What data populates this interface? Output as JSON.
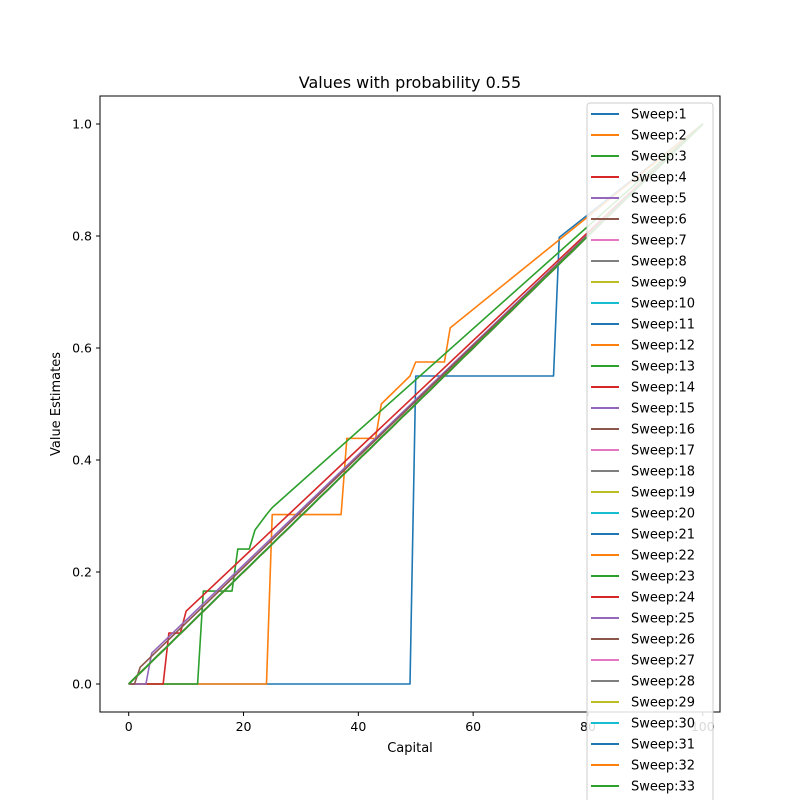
{
  "chart_data": {
    "type": "line",
    "title": "Values with probability 0.55",
    "xlabel": "Capital",
    "ylabel": "Value Estimates",
    "xlim": [
      -5,
      103
    ],
    "ylim": [
      -0.05,
      1.05
    ],
    "xticks": [
      0,
      20,
      40,
      60,
      80,
      100
    ],
    "yticks": [
      0.0,
      0.2,
      0.4,
      0.6,
      0.8,
      1.0
    ],
    "grid": false,
    "legend_position": "top-right",
    "n_series": 33,
    "series_colors": [
      "#1f77b4",
      "#ff7f0e",
      "#2ca02c",
      "#d62728",
      "#9467bd",
      "#8c564b",
      "#e377c2",
      "#7f7f7f",
      "#bcbd22",
      "#17becf"
    ],
    "series": [
      {
        "name": "Sweep:1",
        "x": [
          0,
          49,
          50,
          74,
          75,
          100
        ],
        "y": [
          0,
          0,
          0.55,
          0.55,
          0.7975,
          1
        ]
      },
      {
        "name": "Sweep:2",
        "x": [
          0,
          24,
          25,
          37,
          38,
          43,
          44,
          49,
          50,
          55,
          56,
          100
        ],
        "y": [
          0,
          0,
          0.3025,
          0.3025,
          0.4386,
          0.4386,
          0.5,
          0.55,
          0.575,
          0.575,
          0.636,
          1
        ]
      },
      {
        "name": "Sweep:3",
        "x": [
          0,
          12,
          13,
          18,
          19,
          21,
          22,
          24,
          25,
          100
        ],
        "y": [
          0,
          0,
          0.166,
          0.166,
          0.241,
          0.241,
          0.275,
          0.3025,
          0.315,
          1
        ]
      },
      {
        "name": "Sweep:4",
        "x": [
          0,
          6,
          7,
          9,
          10,
          100
        ],
        "y": [
          0,
          0,
          0.091,
          0.091,
          0.13,
          1
        ]
      },
      {
        "name": "Sweep:5",
        "x": [
          0,
          3,
          4,
          100
        ],
        "y": [
          0,
          0,
          0.055,
          1
        ]
      },
      {
        "name": "Sweep:6",
        "x": [
          0,
          1,
          2,
          100
        ],
        "y": [
          0,
          0,
          0.03,
          1
        ]
      },
      {
        "name": "Sweep:7",
        "x": [
          0,
          100
        ],
        "y": [
          0,
          1
        ]
      },
      {
        "name": "Sweep:8",
        "x": [
          0,
          100
        ],
        "y": [
          0,
          1
        ]
      },
      {
        "name": "Sweep:9",
        "x": [
          0,
          100
        ],
        "y": [
          0,
          1
        ]
      },
      {
        "name": "Sweep:10",
        "x": [
          0,
          100
        ],
        "y": [
          0,
          1
        ]
      },
      {
        "name": "Sweep:11",
        "x": [
          0,
          100
        ],
        "y": [
          0,
          1
        ]
      },
      {
        "name": "Sweep:12",
        "x": [
          0,
          100
        ],
        "y": [
          0,
          1
        ]
      },
      {
        "name": "Sweep:13",
        "x": [
          0,
          100
        ],
        "y": [
          0,
          1
        ]
      },
      {
        "name": "Sweep:14",
        "x": [
          0,
          100
        ],
        "y": [
          0,
          1
        ]
      },
      {
        "name": "Sweep:15",
        "x": [
          0,
          100
        ],
        "y": [
          0,
          1
        ]
      },
      {
        "name": "Sweep:16",
        "x": [
          0,
          100
        ],
        "y": [
          0,
          1
        ]
      },
      {
        "name": "Sweep:17",
        "x": [
          0,
          100
        ],
        "y": [
          0,
          1
        ]
      },
      {
        "name": "Sweep:18",
        "x": [
          0,
          100
        ],
        "y": [
          0,
          1
        ]
      },
      {
        "name": "Sweep:19",
        "x": [
          0,
          100
        ],
        "y": [
          0,
          1
        ]
      },
      {
        "name": "Sweep:20",
        "x": [
          0,
          100
        ],
        "y": [
          0,
          1
        ]
      },
      {
        "name": "Sweep:21",
        "x": [
          0,
          100
        ],
        "y": [
          0,
          1
        ]
      },
      {
        "name": "Sweep:22",
        "x": [
          0,
          100
        ],
        "y": [
          0,
          1
        ]
      },
      {
        "name": "Sweep:23",
        "x": [
          0,
          100
        ],
        "y": [
          0,
          1
        ]
      },
      {
        "name": "Sweep:24",
        "x": [
          0,
          100
        ],
        "y": [
          0,
          1
        ]
      },
      {
        "name": "Sweep:25",
        "x": [
          0,
          100
        ],
        "y": [
          0,
          1
        ]
      },
      {
        "name": "Sweep:26",
        "x": [
          0,
          100
        ],
        "y": [
          0,
          1
        ]
      },
      {
        "name": "Sweep:27",
        "x": [
          0,
          100
        ],
        "y": [
          0,
          1
        ]
      },
      {
        "name": "Sweep:28",
        "x": [
          0,
          100
        ],
        "y": [
          0,
          1
        ]
      },
      {
        "name": "Sweep:29",
        "x": [
          0,
          100
        ],
        "y": [
          0,
          1
        ]
      },
      {
        "name": "Sweep:30",
        "x": [
          0,
          100
        ],
        "y": [
          0,
          1
        ]
      },
      {
        "name": "Sweep:31",
        "x": [
          0,
          100
        ],
        "y": [
          0,
          1
        ]
      },
      {
        "name": "Sweep:32",
        "x": [
          0,
          100
        ],
        "y": [
          0,
          1
        ]
      },
      {
        "name": "Sweep:33",
        "x": [
          0,
          100
        ],
        "y": [
          0,
          1
        ]
      }
    ]
  }
}
